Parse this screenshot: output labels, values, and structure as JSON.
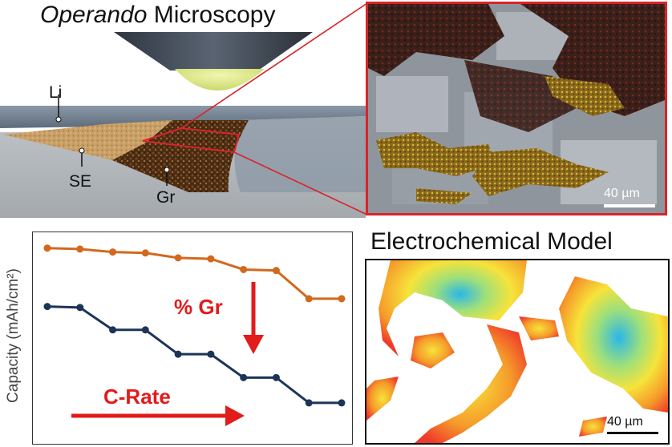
{
  "titles": {
    "operando_italic": "Operando",
    "operando_rest": " Microscopy",
    "electrochemical": "Electrochemical Model"
  },
  "cell_labels": {
    "li": "Li",
    "se": "SE",
    "gr": "Gr"
  },
  "scale_bars": {
    "micro": "40 µm",
    "model": "40 µm"
  },
  "chart_data": {
    "type": "line",
    "title": "",
    "xlabel": "",
    "ylabel": "Capacity (mAh/cm²)",
    "x": [
      1,
      2,
      3,
      4,
      5,
      6,
      7,
      8,
      9,
      10
    ],
    "ylim": [
      0,
      10
    ],
    "grid": false,
    "series": [
      {
        "values": [
          9.6,
          9.55,
          9.4,
          9.35,
          9.1,
          9.05,
          8.5,
          8.45,
          7.0,
          7.0
        ]
      },
      {
        "values": [
          6.6,
          6.55,
          5.4,
          5.4,
          4.15,
          4.15,
          2.95,
          2.95,
          1.65,
          1.65
        ]
      }
    ],
    "annotations": {
      "down_arrow": "% Gr",
      "right_arrow": "C-Rate"
    }
  },
  "colors": {
    "accent_red": "#d7252a",
    "series_orange": "#d2691e",
    "series_navy": "#1c3557",
    "arrow_red": "#e21b1b"
  }
}
